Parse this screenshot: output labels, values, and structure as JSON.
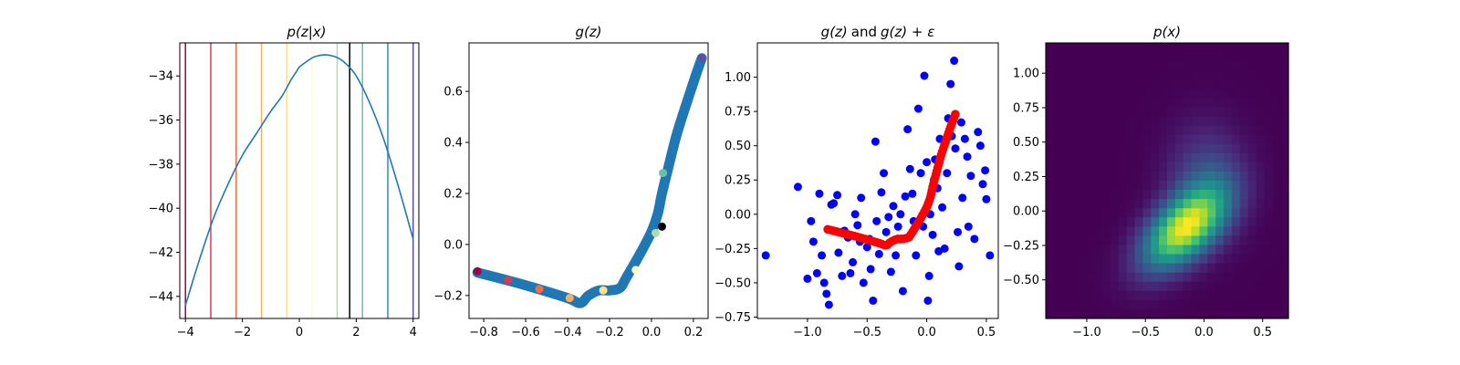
{
  "chart_data": [
    {
      "type": "line",
      "title": "p(z|x)",
      "xlim": [
        -4.2,
        4.2
      ],
      "ylim": [
        -45.0,
        -32.5
      ],
      "xticks": [
        -4,
        -2,
        0,
        2,
        4
      ],
      "xtick_labels": [
        "−4",
        "−2",
        "0",
        "2",
        "4"
      ],
      "yticks": [
        -44,
        -42,
        -40,
        -38,
        -36,
        -34
      ],
      "ytick_labels": [
        "−44",
        "−42",
        "−40",
        "−38",
        "−36",
        "−34"
      ],
      "grid": false,
      "series": [
        {
          "color": "#1f77b4",
          "x": [
            -4.0,
            -3.5,
            -3.0,
            -2.5,
            -2.0,
            -1.5,
            -1.0,
            -0.6,
            -0.3,
            -0.1,
            0.0,
            0.2,
            0.5,
            0.8,
            1.0,
            1.3,
            1.6,
            2.0,
            2.5,
            3.0,
            3.5,
            4.0
          ],
          "y": [
            -44.4,
            -42.3,
            -40.4,
            -38.9,
            -37.6,
            -36.6,
            -35.6,
            -34.9,
            -34.2,
            -33.8,
            -33.6,
            -33.4,
            -33.15,
            -33.05,
            -33.05,
            -33.15,
            -33.4,
            -34.0,
            -35.3,
            -37.0,
            -39.1,
            -41.4
          ]
        }
      ],
      "vlines": [
        {
          "x": -4.0,
          "color": "#9e0142"
        },
        {
          "x": -3.11,
          "color": "#d53e4f"
        },
        {
          "x": -2.22,
          "color": "#f46d43"
        },
        {
          "x": -1.33,
          "color": "#fdae61"
        },
        {
          "x": -0.44,
          "color": "#fee08b"
        },
        {
          "x": 0.44,
          "color": "#ffffbf"
        },
        {
          "x": 1.33,
          "color": "#abdda4"
        },
        {
          "x": 1.77,
          "color": "#000000"
        },
        {
          "x": 2.22,
          "color": "#66c2a5"
        },
        {
          "x": 3.11,
          "color": "#3288bd"
        },
        {
          "x": 4.0,
          "color": "#5e4fa2"
        }
      ]
    },
    {
      "type": "line",
      "title": "g(z)",
      "xlim": [
        -0.87,
        0.27
      ],
      "ylim": [
        -0.29,
        0.79
      ],
      "xticks": [
        -0.8,
        -0.6,
        -0.4,
        -0.2,
        0.0,
        0.2
      ],
      "xtick_labels": [
        "−0.8",
        "−0.6",
        "−0.4",
        "−0.2",
        "0.0",
        "0.2"
      ],
      "yticks": [
        -0.2,
        0.0,
        0.2,
        0.4,
        0.6
      ],
      "ytick_labels": [
        "−0.2",
        "0.0",
        "0.2",
        "0.4",
        "0.6"
      ],
      "grid": false,
      "series": [
        {
          "color": "#1f77b4",
          "x": [
            -0.83,
            -0.6,
            -0.4,
            -0.34,
            -0.3,
            -0.25,
            -0.2,
            -0.15,
            -0.12,
            -0.05,
            0.0,
            0.03,
            0.05,
            0.08,
            0.12,
            0.17,
            0.21,
            0.24
          ],
          "y": [
            -0.11,
            -0.16,
            -0.21,
            -0.23,
            -0.2,
            -0.18,
            -0.18,
            -0.17,
            -0.13,
            -0.03,
            0.05,
            0.12,
            0.2,
            0.3,
            0.43,
            0.56,
            0.66,
            0.73
          ]
        }
      ],
      "markers": [
        {
          "x": -0.83,
          "y": -0.105,
          "color": "#9e0142"
        },
        {
          "x": -0.685,
          "y": -0.14,
          "color": "#d53e4f"
        },
        {
          "x": -0.535,
          "y": -0.175,
          "color": "#f46d43"
        },
        {
          "x": -0.39,
          "y": -0.21,
          "color": "#fdae61"
        },
        {
          "x": -0.23,
          "y": -0.18,
          "color": "#fee08b"
        },
        {
          "x": -0.075,
          "y": -0.1,
          "color": "#ffffbf"
        },
        {
          "x": 0.02,
          "y": 0.045,
          "color": "#abdda4"
        },
        {
          "x": 0.05,
          "y": 0.07,
          "color": "#000000"
        },
        {
          "x": 0.055,
          "y": 0.28,
          "color": "#66c2a5"
        },
        {
          "x": 0.24,
          "y": 0.73,
          "color": "#5e4fa2"
        }
      ]
    },
    {
      "type": "scatter",
      "title_plain_1": "g",
      "title_plain_2": "and",
      "title_math_1": "g(z)",
      "title_math_2": "g(z) + ε",
      "xlim": [
        -1.42,
        0.6
      ],
      "ylim": [
        -0.76,
        1.25
      ],
      "xticks": [
        -1.0,
        -0.5,
        0.0,
        0.5
      ],
      "xtick_labels": [
        "−1.0",
        "−0.5",
        "0.0",
        "0.5"
      ],
      "yticks": [
        -0.75,
        -0.5,
        -0.25,
        0.0,
        0.25,
        0.5,
        0.75,
        1.0
      ],
      "ytick_labels": [
        "−0.75",
        "−0.50",
        "−0.25",
        "0.00",
        "0.25",
        "0.50",
        "0.75",
        "1.00"
      ],
      "grid": false,
      "series": [
        {
          "name": "g(z) + ε",
          "color": "#0000ff",
          "points": [
            [
              -1.35,
              -0.3
            ],
            [
              -1.08,
              0.2
            ],
            [
              -1.0,
              -0.47
            ],
            [
              -0.97,
              -0.05
            ],
            [
              -0.95,
              -0.2
            ],
            [
              -0.92,
              -0.43
            ],
            [
              -0.9,
              0.15
            ],
            [
              -0.88,
              -0.3
            ],
            [
              -0.86,
              -0.5
            ],
            [
              -0.84,
              -0.58
            ],
            [
              -0.82,
              -0.66
            ],
            [
              -0.8,
              0.07
            ],
            [
              -0.78,
              0.08
            ],
            [
              -0.75,
              0.14
            ],
            [
              -0.74,
              -0.28
            ],
            [
              -0.71,
              -0.45
            ],
            [
              -0.69,
              -0.12
            ],
            [
              -0.66,
              -0.17
            ],
            [
              -0.64,
              -0.43
            ],
            [
              -0.62,
              -0.35
            ],
            [
              -0.6,
              0.0
            ],
            [
              -0.58,
              -0.08
            ],
            [
              -0.56,
              -0.2
            ],
            [
              -0.55,
              0.12
            ],
            [
              -0.53,
              -0.5
            ],
            [
              -0.5,
              -0.24
            ],
            [
              -0.48,
              -0.18
            ],
            [
              -0.47,
              -0.4
            ],
            [
              -0.45,
              -0.63
            ],
            [
              -0.43,
              0.53
            ],
            [
              -0.42,
              -0.05
            ],
            [
              -0.4,
              -0.29
            ],
            [
              -0.38,
              0.16
            ],
            [
              -0.36,
              0.3
            ],
            [
              -0.34,
              -0.13
            ],
            [
              -0.32,
              -0.02
            ],
            [
              -0.3,
              -0.42
            ],
            [
              -0.28,
              0.06
            ],
            [
              -0.26,
              -0.3
            ],
            [
              -0.24,
              -0.09
            ],
            [
              -0.22,
              0.0
            ],
            [
              -0.2,
              -0.56
            ],
            [
              -0.18,
              0.13
            ],
            [
              -0.16,
              0.62
            ],
            [
              -0.14,
              0.33
            ],
            [
              -0.12,
              0.15
            ],
            [
              -0.11,
              -0.05
            ],
            [
              -0.09,
              -0.3
            ],
            [
              -0.07,
              0.77
            ],
            [
              -0.05,
              0.3
            ],
            [
              -0.03,
              -0.09
            ],
            [
              -0.02,
              1.01
            ],
            [
              0.0,
              0.38
            ],
            [
              0.01,
              -0.63
            ],
            [
              0.02,
              -0.45
            ],
            [
              0.03,
              0.0
            ],
            [
              0.05,
              -0.15
            ],
            [
              0.06,
              0.25
            ],
            [
              0.07,
              0.4
            ],
            [
              0.09,
              0.19
            ],
            [
              0.1,
              -0.27
            ],
            [
              0.11,
              0.55
            ],
            [
              0.13,
              0.05
            ],
            [
              0.15,
              -0.25
            ],
            [
              0.17,
              0.3
            ],
            [
              0.18,
              0.7
            ],
            [
              0.2,
              0.95
            ],
            [
              0.21,
              0.57
            ],
            [
              0.23,
              1.12
            ],
            [
              0.24,
              0.48
            ],
            [
              0.26,
              -0.13
            ],
            [
              0.27,
              -0.38
            ],
            [
              0.29,
              0.67
            ],
            [
              0.3,
              0.12
            ],
            [
              0.32,
              0.55
            ],
            [
              0.34,
              0.42
            ],
            [
              0.35,
              -0.09
            ],
            [
              0.37,
              0.28
            ],
            [
              0.4,
              -0.18
            ],
            [
              0.43,
              0.6
            ],
            [
              0.45,
              0.5
            ],
            [
              0.47,
              0.22
            ],
            [
              0.49,
              0.32
            ],
            [
              0.5,
              0.11
            ],
            [
              0.53,
              -0.3
            ]
          ]
        },
        {
          "name": "g(z)",
          "color": "#ff0000",
          "x": [
            -0.83,
            -0.6,
            -0.4,
            -0.34,
            -0.3,
            -0.25,
            -0.2,
            -0.15,
            -0.12,
            -0.05,
            0.0,
            0.03,
            0.05,
            0.08,
            0.12,
            0.17,
            0.21,
            0.24
          ],
          "y": [
            -0.11,
            -0.16,
            -0.21,
            -0.23,
            -0.2,
            -0.18,
            -0.18,
            -0.17,
            -0.13,
            -0.03,
            0.05,
            0.12,
            0.2,
            0.3,
            0.43,
            0.56,
            0.66,
            0.73
          ]
        }
      ]
    },
    {
      "type": "heatmap",
      "title": "p(x)",
      "colormap": "viridis",
      "xlim": [
        -1.35,
        0.72
      ],
      "ylim": [
        -0.78,
        1.22
      ],
      "xticks": [
        -1.0,
        -0.5,
        0.0,
        0.5
      ],
      "xtick_labels": [
        "−1.0",
        "−0.5",
        "0.0",
        "0.5"
      ],
      "yticks": [
        -0.5,
        -0.25,
        0.0,
        0.25,
        0.5,
        0.75,
        1.0
      ],
      "ytick_labels": [
        "−0.50",
        "−0.25",
        "0.00",
        "0.25",
        "0.50",
        "0.75",
        "1.00"
      ],
      "grid": false,
      "density_peak": [
        -0.17,
        -0.13
      ],
      "density_sigma": [
        0.24,
        0.2
      ],
      "density_correlation": 0.55,
      "density_tail_weight": 0.25,
      "density_tail_center": [
        0.02,
        0.22
      ],
      "density_tail_sigma": [
        0.22,
        0.27
      ],
      "grid_cells": [
        30,
        30
      ]
    }
  ]
}
